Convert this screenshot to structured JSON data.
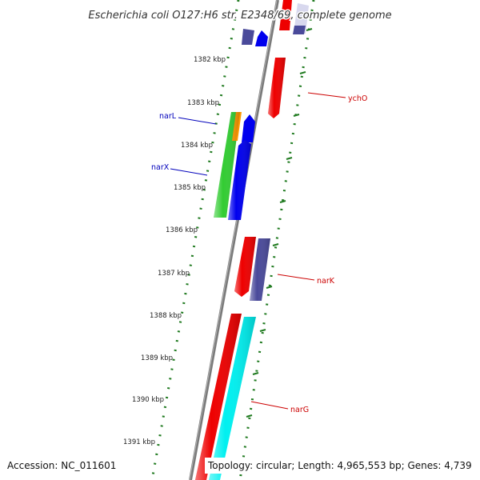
{
  "title": "Escherichia coli O127:H6 str. E2348/69, complete genome",
  "accession": "Accession: NC_011601",
  "topology": "Topology: circular; Length: 4,965,553 bp; Genes: 4,739",
  "colors": {
    "backbone": "#7a7a7a",
    "tick": "#1f7a1f",
    "forward_gene": "#ee0000",
    "reverse_gene": "#0000ee",
    "nar_operon_gene": "#00f0f0",
    "regulator_gene": "#33cc33",
    "misc_gene": "#4a4a9a",
    "orange_gene": "#ff9900",
    "label_forward": "#cc0000",
    "label_reverse": "#0000bb"
  },
  "kbp_ticks": [
    {
      "label": "1382 kbp",
      "kbp": 1382
    },
    {
      "label": "1383 kbp",
      "kbp": 1383
    },
    {
      "label": "1384 kbp",
      "kbp": 1384
    },
    {
      "label": "1385 kbp",
      "kbp": 1385
    },
    {
      "label": "1386 kbp",
      "kbp": 1386
    },
    {
      "label": "1387 kbp",
      "kbp": 1387
    },
    {
      "label": "1388 kbp",
      "kbp": 1388
    },
    {
      "label": "1389 kbp",
      "kbp": 1389
    },
    {
      "label": "1390 kbp",
      "kbp": 1390
    },
    {
      "label": "1391 kbp",
      "kbp": 1391
    }
  ],
  "gene_labels": [
    {
      "name": "ychO",
      "color": "#cc0000"
    },
    {
      "name": "narL",
      "color": "#0000bb"
    },
    {
      "name": "narX",
      "color": "#0000bb"
    },
    {
      "name": "narK",
      "color": "#cc0000"
    },
    {
      "name": "narG",
      "color": "#cc0000"
    }
  ]
}
